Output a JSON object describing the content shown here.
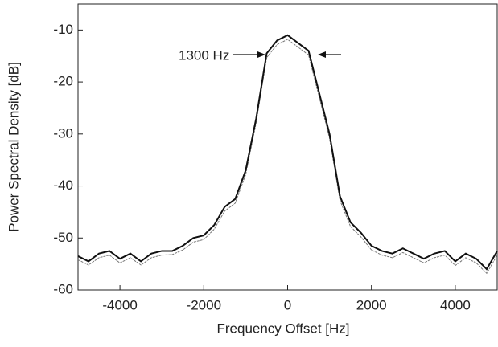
{
  "chart_data": {
    "type": "line",
    "xlabel": "Frequency Offset [Hz]",
    "ylabel": "Power Spectral Density [dB]",
    "annotation": "1300 Hz",
    "x": [
      -5000,
      -4750,
      -4500,
      -4250,
      -4000,
      -3750,
      -3500,
      -3250,
      -3000,
      -2750,
      -2500,
      -2250,
      -2000,
      -1750,
      -1500,
      -1250,
      -1000,
      -750,
      -500,
      -250,
      0,
      250,
      500,
      750,
      1000,
      1250,
      1500,
      1750,
      2000,
      2250,
      2500,
      2750,
      3000,
      3250,
      3500,
      3750,
      4000,
      4250,
      4500,
      4750,
      5000
    ],
    "series": [
      {
        "color": "#111111",
        "values": [
          -53.5,
          -54.5,
          -53,
          -52.5,
          -54,
          -53,
          -54.5,
          -53,
          -52.5,
          -52.5,
          -51.5,
          -50,
          -49.5,
          -47.5,
          -44,
          -42.5,
          -37,
          -27,
          -14.5,
          -12,
          -11,
          -12.5,
          -14,
          -22,
          -30,
          -42,
          -47,
          -49,
          -51.5,
          -52.5,
          -53,
          -52,
          -53,
          -54,
          -53,
          -52.5,
          -54.5,
          -53,
          -54,
          -56,
          -52.5
        ]
      },
      {
        "color": "#777777",
        "values": [
          -54.2,
          -55.2,
          -53.8,
          -53.3,
          -54.8,
          -53.8,
          -55.2,
          -53.8,
          -53.3,
          -53.2,
          -52.3,
          -50.8,
          -50.3,
          -48.3,
          -44.8,
          -43.3,
          -37.8,
          -27.8,
          -15.3,
          -12.8,
          -11.8,
          -13.3,
          -14.8,
          -22.8,
          -30.8,
          -42.8,
          -47.8,
          -49.8,
          -52.3,
          -53.3,
          -53.8,
          -52.8,
          -53.8,
          -54.8,
          -53.8,
          -53.3,
          -55.3,
          -53.8,
          -54.8,
          -56.8,
          -53.3
        ]
      }
    ],
    "xlim": [
      -5000,
      5000
    ],
    "xticks": [
      -4000,
      -2000,
      0,
      2000,
      4000
    ],
    "ylim": [
      -60,
      -5
    ],
    "yticks": [
      -10,
      -20,
      -30,
      -40,
      -50,
      -60
    ],
    "grid": false
  }
}
